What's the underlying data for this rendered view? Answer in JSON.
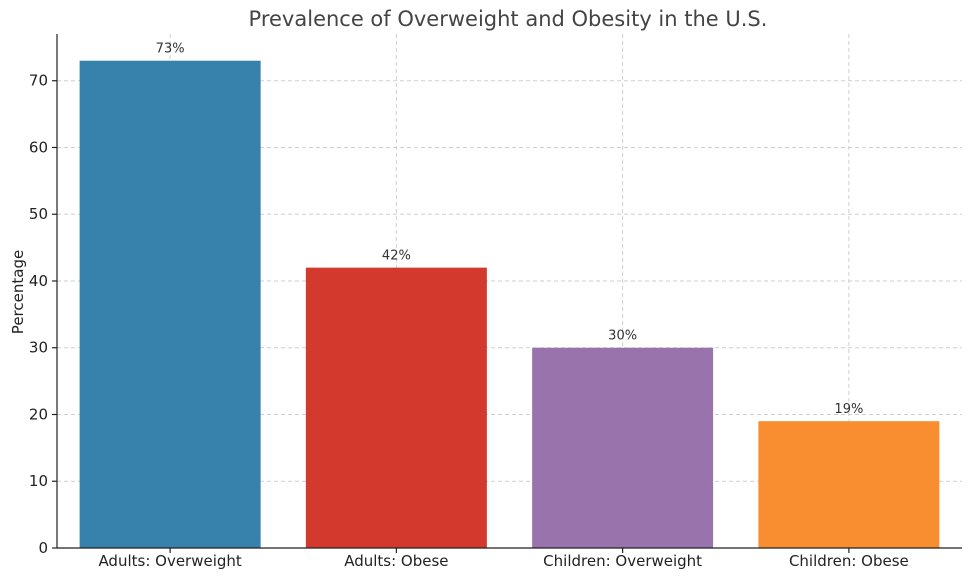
{
  "chart_data": {
    "type": "bar",
    "title": "Prevalence of Overweight and Obesity in the U.S.",
    "xlabel": "",
    "ylabel": "Percentage",
    "categories": [
      "Adults: Overweight",
      "Adults: Obese",
      "Children: Overweight",
      "Children: Obese"
    ],
    "values": [
      73,
      42,
      30,
      19
    ],
    "value_labels": [
      "73%",
      "42%",
      "30%",
      "19%"
    ],
    "colors": [
      "#2f7ea9",
      "#d23426",
      "#9670a9",
      "#f98a2a"
    ],
    "ylim": [
      0,
      77
    ],
    "yticks": [
      0,
      10,
      20,
      30,
      40,
      50,
      60,
      70
    ],
    "grid": true,
    "legend": "none"
  }
}
